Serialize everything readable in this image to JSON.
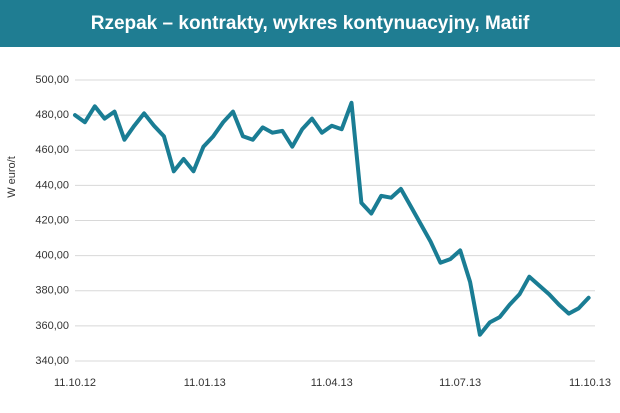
{
  "chart_data": {
    "type": "line",
    "title": "Rzepak – kontrakty, wykres kontynuacyjny, Matif",
    "ylabel": "W euro/t",
    "x": [
      "11.10.12",
      "18.10.12",
      "25.10.12",
      "01.11.12",
      "08.11.12",
      "15.11.12",
      "22.11.12",
      "29.11.12",
      "06.12.12",
      "13.12.12",
      "20.12.12",
      "27.12.12",
      "03.01.13",
      "10.01.13",
      "17.01.13",
      "24.01.13",
      "31.01.13",
      "07.02.13",
      "14.02.13",
      "21.02.13",
      "28.02.13",
      "07.03.13",
      "14.03.13",
      "21.03.13",
      "28.03.13",
      "04.04.13",
      "11.04.13",
      "18.04.13",
      "25.04.13",
      "02.05.13",
      "09.05.13",
      "16.05.13",
      "23.05.13",
      "30.05.13",
      "06.06.13",
      "13.06.13",
      "20.06.13",
      "27.06.13",
      "04.07.13",
      "11.07.13",
      "18.07.13",
      "25.07.13",
      "01.08.13",
      "08.08.13",
      "15.08.13",
      "22.08.13",
      "29.08.13",
      "05.09.13",
      "12.09.13",
      "19.09.13",
      "26.09.13",
      "03.10.13",
      "10.10.13"
    ],
    "series": [
      {
        "name": "Rzepak",
        "color": "#1a7d94",
        "values": [
          480,
          476,
          485,
          478,
          482,
          466,
          474,
          481,
          474,
          468,
          448,
          455,
          448,
          462,
          468,
          476,
          482,
          468,
          466,
          473,
          470,
          471,
          462,
          472,
          478,
          470,
          474,
          472,
          487,
          430,
          424,
          434,
          433,
          438,
          428,
          418,
          408,
          396,
          398,
          403,
          385,
          355,
          362,
          365,
          372,
          378,
          388,
          383,
          378,
          372,
          367,
          370,
          376
        ]
      }
    ],
    "xlim": [
      "11.10.12",
      "11.10.13"
    ],
    "xticks": [
      "11.10.12",
      "11.01.13",
      "11.04.13",
      "11.07.13",
      "11.10.13"
    ],
    "ylim": [
      340,
      500
    ],
    "yticks": [
      {
        "value": 340,
        "label": "340,00"
      },
      {
        "value": 360,
        "label": "360,00"
      },
      {
        "value": 380,
        "label": "380,00"
      },
      {
        "value": 400,
        "label": "400,00"
      },
      {
        "value": 420,
        "label": "420,00"
      },
      {
        "value": 440,
        "label": "440,00"
      },
      {
        "value": 460,
        "label": "460,00"
      },
      {
        "value": 480,
        "label": "480,00"
      },
      {
        "value": 500,
        "label": "500,00"
      }
    ],
    "grid": true
  }
}
